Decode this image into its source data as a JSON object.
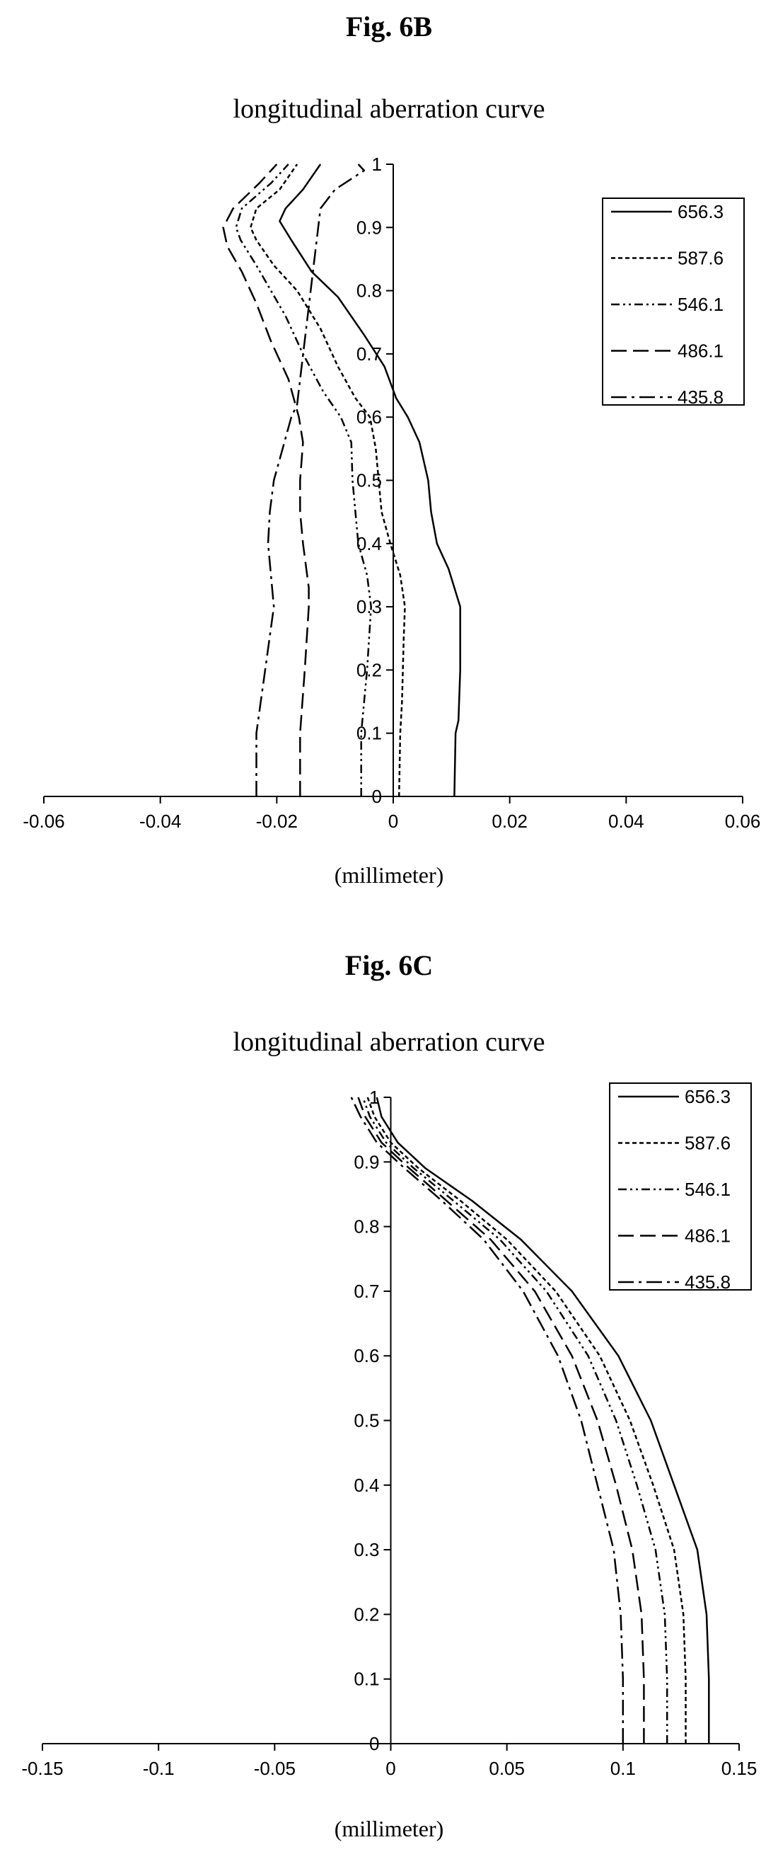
{
  "chart_data": [
    {
      "type": "line",
      "figure_label": "Fig. 6B",
      "title": "longitudinal aberration curve",
      "xlabel": "(millimeter)",
      "ylabel": "",
      "xlim": [
        -0.06,
        0.06
      ],
      "ylim": [
        0,
        1
      ],
      "x_ticks": [
        "-0.06",
        "-0.04",
        "-0.02",
        "0",
        "0.02",
        "0.04",
        "0.06"
      ],
      "y_ticks": [
        "0",
        "0.1",
        "0.2",
        "0.3",
        "0.4",
        "0.5",
        "0.6",
        "0.7",
        "0.8",
        "0.9",
        "1"
      ],
      "legend_position": "top-right",
      "series": [
        {
          "name": "656.3",
          "style": "solid",
          "points": [
            [
              0.0105,
              0
            ],
            [
              0.0107,
              0.1
            ],
            [
              0.0112,
              0.12
            ],
            [
              0.0115,
              0.2
            ],
            [
              0.0115,
              0.3
            ],
            [
              0.0095,
              0.36
            ],
            [
              0.0075,
              0.4
            ],
            [
              0.0065,
              0.45
            ],
            [
              0.006,
              0.5
            ],
            [
              0.0045,
              0.56
            ],
            [
              0.0025,
              0.6
            ],
            [
              0.0005,
              0.63
            ],
            [
              -0.0015,
              0.68
            ],
            [
              -0.005,
              0.73
            ],
            [
              -0.0095,
              0.79
            ],
            [
              -0.014,
              0.83
            ],
            [
              -0.0175,
              0.88
            ],
            [
              -0.0195,
              0.91
            ],
            [
              -0.0185,
              0.93
            ],
            [
              -0.0155,
              0.96
            ],
            [
              -0.0125,
              1.0
            ]
          ]
        },
        {
          "name": "587.6",
          "style": "short-dash",
          "points": [
            [
              0.001,
              0
            ],
            [
              0.0012,
              0.1
            ],
            [
              0.0015,
              0.15
            ],
            [
              0.0018,
              0.25
            ],
            [
              0.002,
              0.3
            ],
            [
              0.0012,
              0.35
            ],
            [
              -0.0005,
              0.4
            ],
            [
              -0.002,
              0.45
            ],
            [
              -0.0025,
              0.5
            ],
            [
              -0.003,
              0.55
            ],
            [
              -0.004,
              0.6
            ],
            [
              -0.0065,
              0.63
            ],
            [
              -0.0095,
              0.68
            ],
            [
              -0.0125,
              0.74
            ],
            [
              -0.0165,
              0.8
            ],
            [
              -0.0205,
              0.84
            ],
            [
              -0.0235,
              0.88
            ],
            [
              -0.0245,
              0.9
            ],
            [
              -0.0235,
              0.93
            ],
            [
              -0.0195,
              0.96
            ],
            [
              -0.0165,
              1.0
            ]
          ]
        },
        {
          "name": "546.1",
          "style": "dash-dot-dot",
          "points": [
            [
              -0.0055,
              0
            ],
            [
              -0.0055,
              0.1
            ],
            [
              -0.0045,
              0.2
            ],
            [
              -0.0038,
              0.3
            ],
            [
              -0.0045,
              0.35
            ],
            [
              -0.006,
              0.4
            ],
            [
              -0.0065,
              0.45
            ],
            [
              -0.007,
              0.5
            ],
            [
              -0.0072,
              0.56
            ],
            [
              -0.009,
              0.6
            ],
            [
              -0.012,
              0.64
            ],
            [
              -0.0155,
              0.7
            ],
            [
              -0.0185,
              0.76
            ],
            [
              -0.021,
              0.8
            ],
            [
              -0.0235,
              0.84
            ],
            [
              -0.0262,
              0.88
            ],
            [
              -0.027,
              0.9
            ],
            [
              -0.026,
              0.93
            ],
            [
              -0.021,
              0.97
            ],
            [
              -0.018,
              1.0
            ]
          ]
        },
        {
          "name": "486.1",
          "style": "long-dash",
          "points": [
            [
              -0.016,
              0
            ],
            [
              -0.016,
              0.1
            ],
            [
              -0.0152,
              0.2
            ],
            [
              -0.0145,
              0.3
            ],
            [
              -0.0145,
              0.33
            ],
            [
              -0.0155,
              0.4
            ],
            [
              -0.016,
              0.45
            ],
            [
              -0.016,
              0.5
            ],
            [
              -0.0155,
              0.56
            ],
            [
              -0.0162,
              0.6
            ],
            [
              -0.018,
              0.66
            ],
            [
              -0.021,
              0.72
            ],
            [
              -0.0235,
              0.78
            ],
            [
              -0.026,
              0.83
            ],
            [
              -0.0285,
              0.87
            ],
            [
              -0.0292,
              0.9
            ],
            [
              -0.0275,
              0.93
            ],
            [
              -0.023,
              0.97
            ],
            [
              -0.02,
              1.0
            ]
          ]
        },
        {
          "name": "435.8",
          "style": "dash-dot",
          "points": [
            [
              -0.0235,
              0
            ],
            [
              -0.0235,
              0.1
            ],
            [
              -0.022,
              0.2
            ],
            [
              -0.0205,
              0.3
            ],
            [
              -0.021,
              0.35
            ],
            [
              -0.0215,
              0.4
            ],
            [
              -0.0212,
              0.45
            ],
            [
              -0.0205,
              0.5
            ],
            [
              -0.019,
              0.55
            ],
            [
              -0.0175,
              0.6
            ],
            [
              -0.0165,
              0.62
            ],
            [
              -0.0125,
              0.93
            ],
            [
              -0.01,
              0.96
            ],
            [
              -0.005,
              0.99
            ],
            [
              -0.006,
              1.0
            ]
          ]
        }
      ]
    },
    {
      "type": "line",
      "figure_label": "Fig. 6C",
      "title": "longitudinal aberration curve",
      "xlabel": "(millimeter)",
      "ylabel": "",
      "xlim": [
        -0.15,
        0.15
      ],
      "ylim": [
        0,
        1
      ],
      "x_ticks": [
        "-0.15",
        "-0.1",
        "-0.05",
        "0",
        "0.05",
        "0.1",
        "0.15"
      ],
      "y_ticks": [
        "0",
        "0.1",
        "0.2",
        "0.3",
        "0.4",
        "0.5",
        "0.6",
        "0.7",
        "0.8",
        "0.9",
        "1"
      ],
      "legend_position": "top-right",
      "series": [
        {
          "name": "656.3",
          "style": "solid",
          "points": [
            [
              0.137,
              0
            ],
            [
              0.137,
              0.1
            ],
            [
              0.136,
              0.2
            ],
            [
              0.132,
              0.3
            ],
            [
              0.122,
              0.4
            ],
            [
              0.112,
              0.5
            ],
            [
              0.098,
              0.6
            ],
            [
              0.078,
              0.7
            ],
            [
              0.056,
              0.78
            ],
            [
              0.035,
              0.84
            ],
            [
              0.015,
              0.89
            ],
            [
              0.003,
              0.93
            ],
            [
              -0.004,
              0.97
            ],
            [
              -0.006,
              1.0
            ]
          ]
        },
        {
          "name": "587.6",
          "style": "short-dash",
          "points": [
            [
              0.127,
              0
            ],
            [
              0.127,
              0.1
            ],
            [
              0.126,
              0.2
            ],
            [
              0.122,
              0.3
            ],
            [
              0.113,
              0.4
            ],
            [
              0.103,
              0.5
            ],
            [
              0.09,
              0.6
            ],
            [
              0.071,
              0.7
            ],
            [
              0.05,
              0.78
            ],
            [
              0.03,
              0.84
            ],
            [
              0.012,
              0.89
            ],
            [
              0.0,
              0.93
            ],
            [
              -0.007,
              0.97
            ],
            [
              -0.01,
              1.0
            ]
          ]
        },
        {
          "name": "546.1",
          "style": "dash-dot-dot",
          "points": [
            [
              0.119,
              0
            ],
            [
              0.119,
              0.1
            ],
            [
              0.118,
              0.2
            ],
            [
              0.114,
              0.3
            ],
            [
              0.106,
              0.4
            ],
            [
              0.097,
              0.5
            ],
            [
              0.085,
              0.6
            ],
            [
              0.067,
              0.7
            ],
            [
              0.047,
              0.78
            ],
            [
              0.027,
              0.84
            ],
            [
              0.01,
              0.89
            ],
            [
              -0.002,
              0.93
            ],
            [
              -0.009,
              0.97
            ],
            [
              -0.012,
              1.0
            ]
          ]
        },
        {
          "name": "486.1",
          "style": "long-dash",
          "points": [
            [
              0.109,
              0
            ],
            [
              0.109,
              0.1
            ],
            [
              0.108,
              0.2
            ],
            [
              0.104,
              0.3
            ],
            [
              0.097,
              0.4
            ],
            [
              0.089,
              0.5
            ],
            [
              0.078,
              0.6
            ],
            [
              0.062,
              0.7
            ],
            [
              0.043,
              0.78
            ],
            [
              0.024,
              0.84
            ],
            [
              0.008,
              0.89
            ],
            [
              -0.004,
              0.93
            ],
            [
              -0.011,
              0.97
            ],
            [
              -0.014,
              1.0
            ]
          ]
        },
        {
          "name": "435.8",
          "style": "dash-dot",
          "points": [
            [
              0.1,
              0
            ],
            [
              0.1,
              0.1
            ],
            [
              0.099,
              0.2
            ],
            [
              0.096,
              0.3
            ],
            [
              0.089,
              0.4
            ],
            [
              0.082,
              0.5
            ],
            [
              0.072,
              0.6
            ],
            [
              0.057,
              0.7
            ],
            [
              0.04,
              0.78
            ],
            [
              0.022,
              0.84
            ],
            [
              0.006,
              0.89
            ],
            [
              -0.006,
              0.93
            ],
            [
              -0.013,
              0.97
            ],
            [
              -0.017,
              1.0
            ]
          ]
        }
      ]
    }
  ]
}
